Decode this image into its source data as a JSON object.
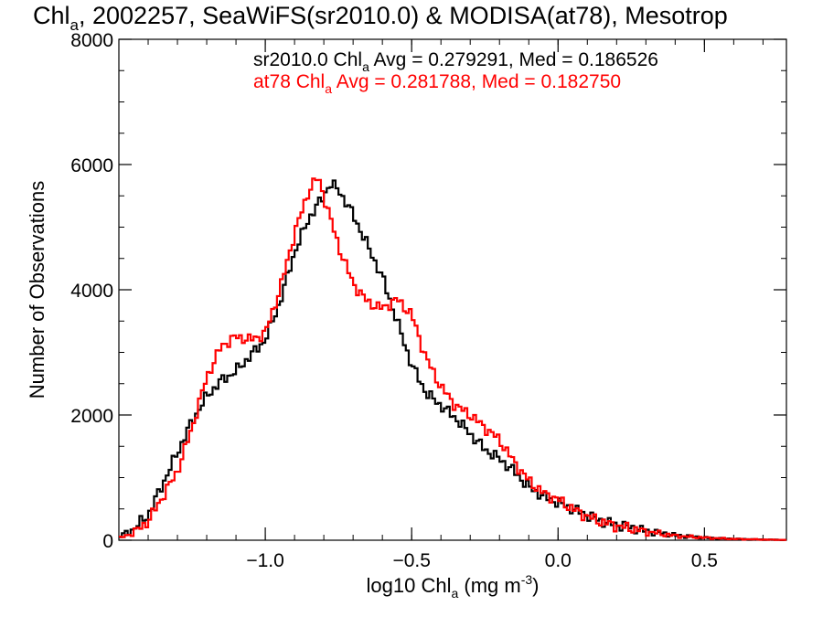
{
  "chart_data": {
    "type": "line",
    "title": {
      "main": "Chl",
      "sub": "a",
      "rest": ", 2002257, SeaWiFS(sr2010.0) & MODISA(at78), Mesotrop"
    },
    "xlabel": {
      "pre": "log10 Chl",
      "sub": "a",
      "mid": " (mg m",
      "sup": "-3",
      "post": ")"
    },
    "ylabel": "Number of Observations",
    "xlim": [
      -1.5,
      0.78
    ],
    "ylim": [
      0,
      8000
    ],
    "x_ticks": [
      {
        "value": -1.0,
        "label": "−1.0"
      },
      {
        "value": -0.5,
        "label": "−0.5"
      },
      {
        "value": 0.0,
        "label": "0.0"
      },
      {
        "value": 0.5,
        "label": "0.5"
      }
    ],
    "y_ticks": [
      {
        "value": 0,
        "label": "0"
      },
      {
        "value": 2000,
        "label": "2000"
      },
      {
        "value": 4000,
        "label": "4000"
      },
      {
        "value": 6000,
        "label": "6000"
      },
      {
        "value": 8000,
        "label": "8000"
      }
    ],
    "x_minor_step": 0.1,
    "y_minor_step": 500,
    "grid": false,
    "legend": [
      {
        "pre": "sr2010.0 Chl",
        "sub": "a",
        "post": " Avg = 0.279291, Med = 0.186526",
        "color": "#000000"
      },
      {
        "pre": "at78 Chl",
        "sub": "a",
        "post": " Avg = 0.281788, Med = 0.182750",
        "color": "#ff0000"
      }
    ],
    "series": [
      {
        "color": "#000000",
        "x": [
          -1.5,
          -1.45,
          -1.4,
          -1.35,
          -1.3,
          -1.25,
          -1.2,
          -1.15,
          -1.1,
          -1.05,
          -1.0,
          -0.95,
          -0.9,
          -0.85,
          -0.8,
          -0.78,
          -0.75,
          -0.7,
          -0.65,
          -0.6,
          -0.55,
          -0.5,
          -0.45,
          -0.4,
          -0.35,
          -0.3,
          -0.25,
          -0.2,
          -0.15,
          -0.1,
          -0.05,
          0.0,
          0.05,
          0.1,
          0.15,
          0.2,
          0.3,
          0.4,
          0.5,
          0.6,
          0.7,
          0.78
        ],
        "values": [
          50,
          180,
          400,
          900,
          1400,
          1900,
          2300,
          2550,
          2700,
          2950,
          3200,
          3800,
          4600,
          5150,
          5500,
          5700,
          5600,
          5200,
          4700,
          4200,
          3500,
          2800,
          2350,
          2150,
          1950,
          1700,
          1450,
          1300,
          1100,
          850,
          700,
          600,
          500,
          400,
          300,
          250,
          150,
          80,
          40,
          20,
          10,
          5
        ]
      },
      {
        "color": "#ff0000",
        "x": [
          -1.5,
          -1.45,
          -1.4,
          -1.35,
          -1.3,
          -1.25,
          -1.2,
          -1.15,
          -1.1,
          -1.05,
          -1.0,
          -0.95,
          -0.9,
          -0.85,
          -0.82,
          -0.8,
          -0.75,
          -0.7,
          -0.65,
          -0.6,
          -0.55,
          -0.5,
          -0.45,
          -0.4,
          -0.35,
          -0.3,
          -0.25,
          -0.2,
          -0.15,
          -0.1,
          -0.05,
          0.0,
          0.05,
          0.1,
          0.15,
          0.2,
          0.3,
          0.4,
          0.5,
          0.6,
          0.7,
          0.78
        ],
        "values": [
          30,
          120,
          300,
          700,
          1100,
          1800,
          2600,
          3100,
          3250,
          3200,
          3300,
          4000,
          4900,
          5600,
          5800,
          5500,
          4700,
          4100,
          3800,
          3700,
          3850,
          3600,
          2900,
          2450,
          2150,
          2000,
          1800,
          1600,
          1250,
          950,
          750,
          650,
          500,
          380,
          290,
          230,
          140,
          70,
          40,
          20,
          10,
          5
        ]
      }
    ]
  }
}
